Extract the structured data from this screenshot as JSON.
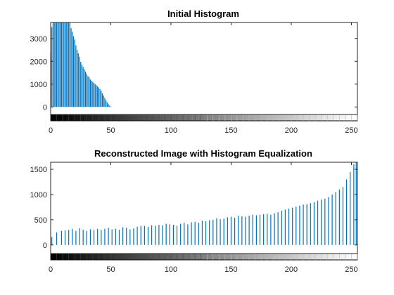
{
  "chart_data": [
    {
      "type": "bar",
      "title": "Initial Histogram",
      "xlabel": "",
      "ylabel": "",
      "xlim": [
        0,
        255
      ],
      "ylim": [
        -330,
        3700
      ],
      "xticks": [
        0,
        50,
        100,
        150,
        200,
        250
      ],
      "yticks": [
        0,
        1000,
        2000,
        3000
      ],
      "colorbar": "grayscale 0-255 below axis",
      "bar_color": "#0072BD",
      "x": [
        0,
        1,
        2,
        3,
        4,
        5,
        6,
        7,
        8,
        9,
        10,
        11,
        12,
        13,
        14,
        15,
        16,
        17,
        18,
        19,
        20,
        21,
        22,
        23,
        24,
        25,
        26,
        27,
        28,
        29,
        30,
        31,
        32,
        33,
        34,
        35,
        36,
        37,
        38,
        39,
        40,
        41,
        42,
        43,
        44,
        45,
        46,
        47,
        48,
        49,
        50,
        51
      ],
      "values": [
        2400,
        3500,
        3700,
        3700,
        3700,
        3700,
        3700,
        3700,
        3700,
        3700,
        3700,
        3700,
        3700,
        3700,
        3700,
        3700,
        3700,
        3450,
        3300,
        3100,
        2950,
        2700,
        2500,
        2350,
        2200,
        1980,
        1850,
        1750,
        1650,
        1550,
        1450,
        1350,
        1300,
        1200,
        1150,
        1100,
        1050,
        1000,
        950,
        900,
        850,
        780,
        700,
        600,
        500,
        400,
        300,
        200,
        120,
        60,
        20,
        5
      ]
    },
    {
      "type": "bar",
      "title": "Reconstructed Image with Histogram Equalization",
      "xlabel": "",
      "ylabel": "",
      "xlim": [
        0,
        255
      ],
      "ylim": [
        -170,
        1640
      ],
      "xticks": [
        0,
        50,
        100,
        150,
        200,
        250
      ],
      "yticks": [
        0,
        500,
        1000,
        1500
      ],
      "colorbar": "grayscale 0-255 below axis",
      "bar_color": "#0072BD",
      "x": [
        1,
        5,
        9,
        12,
        15,
        18,
        21,
        24,
        27,
        30,
        33,
        36,
        39,
        42,
        45,
        48,
        51,
        54,
        57,
        60,
        63,
        66,
        69,
        72,
        75,
        78,
        81,
        84,
        87,
        90,
        93,
        96,
        99,
        102,
        105,
        108,
        111,
        114,
        117,
        120,
        123,
        126,
        129,
        132,
        135,
        138,
        141,
        144,
        147,
        150,
        153,
        156,
        159,
        162,
        165,
        168,
        171,
        174,
        177,
        180,
        183,
        186,
        189,
        192,
        195,
        198,
        201,
        204,
        207,
        210,
        213,
        216,
        219,
        222,
        225,
        228,
        231,
        234,
        237,
        240,
        243,
        246,
        249,
        252,
        254
      ],
      "values": [
        160,
        250,
        280,
        290,
        300,
        320,
        280,
        330,
        300,
        280,
        310,
        300,
        320,
        300,
        320,
        340,
        310,
        320,
        300,
        350,
        340,
        310,
        330,
        360,
        380,
        380,
        360,
        390,
        380,
        400,
        390,
        420,
        410,
        400,
        380,
        420,
        440,
        410,
        450,
        460,
        440,
        480,
        470,
        490,
        500,
        530,
        510,
        520,
        550,
        560,
        540,
        580,
        570,
        560,
        580,
        600,
        590,
        600,
        610,
        620,
        600,
        630,
        650,
        680,
        700,
        720,
        740,
        760,
        780,
        800,
        810,
        830,
        850,
        880,
        900,
        920,
        950,
        1000,
        1050,
        1100,
        1150,
        1300,
        1450,
        1600,
        1640
      ]
    }
  ]
}
